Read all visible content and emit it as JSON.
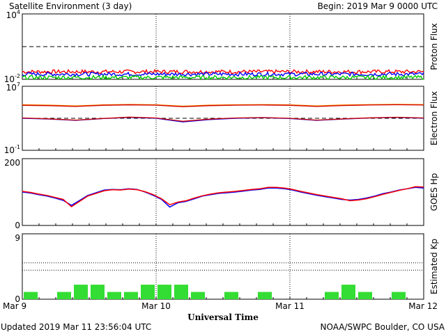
{
  "header": {
    "title": "Satellite Environment (3 day)",
    "begin": "Begin:  2019 Mar 9 0000 UTC"
  },
  "footer": {
    "updated": "Updated 2019 Mar 11 23:56:04 UTC",
    "credit": "NOAA/SWPC Boulder, CO USA",
    "xlabel": "Universal Time"
  },
  "chart_data": [
    {
      "type": "line",
      "ylabel": "Proton Flux",
      "yscale": "log",
      "ylim": [
        "1e-2",
        "1e4"
      ],
      "yticks": [
        {
          "base": "10",
          "exp": "4"
        },
        {
          "base": "10",
          "exp": "-2"
        }
      ],
      "threshold": 10,
      "threshold_style": "dashed",
      "x": [
        "Mar 9",
        "Mar 10",
        "Mar 11",
        "Mar 12"
      ],
      "series": [
        {
          "color": "#ff0000",
          "level": 0.05
        },
        {
          "color": "#0000ff",
          "level": 0.03
        },
        {
          "color": "#00cc00",
          "level": 0.015
        }
      ]
    },
    {
      "type": "line",
      "ylabel": "Electron Flux",
      "yscale": "log",
      "ylim": [
        "1e-1",
        "1e7"
      ],
      "yticks": [
        {
          "base": "10",
          "exp": "7"
        },
        {
          "base": "10",
          "exp": "-1"
        }
      ],
      "threshold": 1000,
      "threshold_style": "dashed",
      "series": [
        {
          "color": "#ff8c00",
          "values": [
            50000,
            45000,
            35000,
            48000,
            55000,
            50000,
            33000,
            45000,
            50000,
            52000,
            48000,
            36000,
            47000,
            52000,
            56000,
            52000
          ]
        },
        {
          "color": "#cc0000",
          "values": [
            42000,
            38000,
            30000,
            42000,
            48000,
            44000,
            28000,
            38000,
            44000,
            46000,
            42000,
            30000,
            40000,
            46000,
            50000,
            46000
          ]
        },
        {
          "color": "#0000ff",
          "values": [
            1000,
            800,
            550,
            900,
            1300,
            1000,
            350,
            700,
            1000,
            1200,
            950,
            550,
            800,
            1100,
            1300,
            1050
          ]
        },
        {
          "color": "#cc0000",
          "values": [
            1100,
            850,
            600,
            950,
            1400,
            1100,
            420,
            780,
            1100,
            1250,
            1000,
            600,
            850,
            1150,
            1350,
            1100
          ]
        }
      ]
    },
    {
      "type": "line",
      "ylabel": "GOES Hp",
      "ylim": [
        0,
        200
      ],
      "yticks": [
        "200",
        "0"
      ],
      "series": [
        {
          "color": "#0000ff",
          "values": [
            100,
            97,
            92,
            88,
            82,
            75,
            60,
            75,
            90,
            98,
            106,
            108,
            107,
            110,
            108,
            100,
            90,
            78,
            55,
            68,
            72,
            80,
            88,
            92,
            96,
            98,
            100,
            103,
            106,
            108,
            112,
            112,
            110,
            106,
            100,
            95,
            90,
            86,
            82,
            78,
            76,
            78,
            82,
            88,
            95,
            100,
            106,
            110,
            114,
            112
          ]
        },
        {
          "color": "#ff0000",
          "values": [
            102,
            99,
            94,
            90,
            84,
            78,
            56,
            72,
            88,
            96,
            104,
            107,
            106,
            109,
            107,
            101,
            92,
            80,
            62,
            70,
            74,
            82,
            89,
            94,
            98,
            100,
            102,
            105,
            108,
            110,
            114,
            114,
            112,
            108,
            102,
            97,
            92,
            88,
            84,
            80,
            74,
            76,
            80,
            86,
            93,
            99,
            105,
            110,
            116,
            115
          ]
        }
      ]
    },
    {
      "type": "bar",
      "ylabel": "Estimated Kp",
      "ylim": [
        0,
        9
      ],
      "yticks": [
        "9",
        "0"
      ],
      "color": "#33dd33",
      "values": [
        1,
        0,
        1,
        2,
        2,
        1,
        1,
        2,
        2,
        2,
        1,
        0,
        1,
        0,
        1,
        0,
        0,
        0,
        1,
        2,
        1,
        0,
        1,
        0
      ]
    }
  ]
}
